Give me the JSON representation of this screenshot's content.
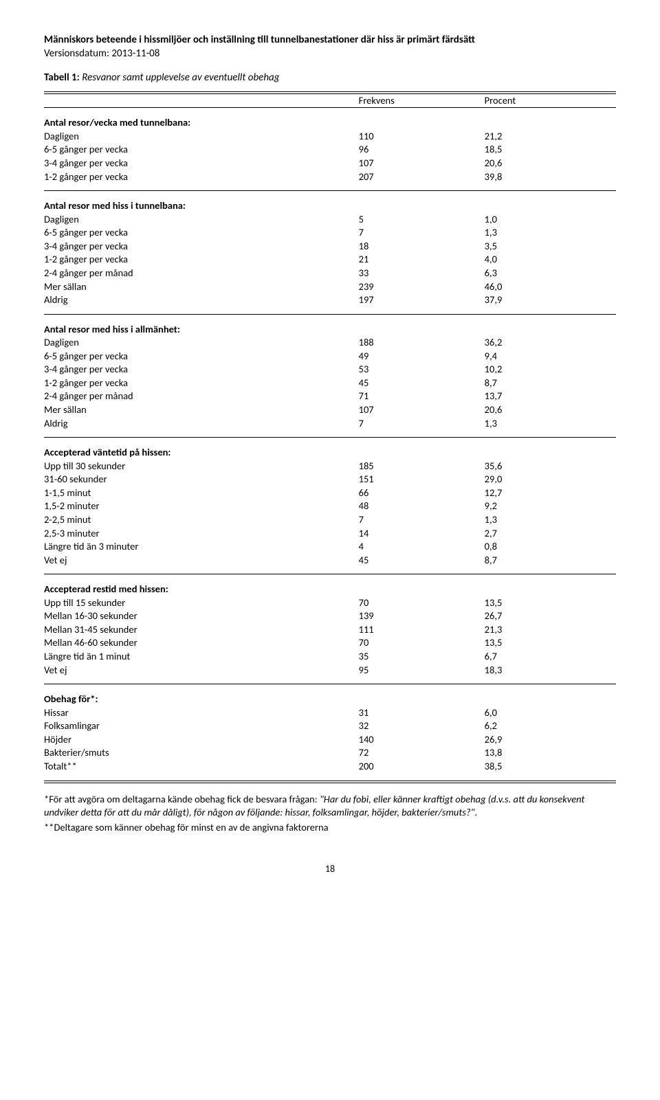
{
  "header": {
    "title": "Människors beteende i hissmiljöer och inställning till tunnelbanestationer där hiss är primärt färdsätt",
    "version": "Versionsdatum: 2013-11-08"
  },
  "tableCaption": {
    "label": "Tabell 1:",
    "text": " Resvanor samt upplevelse av eventuellt obehag"
  },
  "columns": {
    "freq": "Frekvens",
    "pct": "Procent"
  },
  "sections": [
    {
      "header": "Antal resor/vecka med tunnelbana:",
      "rows": [
        {
          "label": "Dagligen",
          "freq": "110",
          "pct": "21,2"
        },
        {
          "label": "6-5 gånger per vecka",
          "freq": "96",
          "pct": "18,5"
        },
        {
          "label": "3-4 gånger per vecka",
          "freq": "107",
          "pct": "20,6"
        },
        {
          "label": "1-2 gånger per vecka",
          "freq": "207",
          "pct": "39,8"
        }
      ]
    },
    {
      "header": "Antal resor med hiss i tunnelbana:",
      "rows": [
        {
          "label": "Dagligen",
          "freq": "5",
          "pct": "1,0"
        },
        {
          "label": "6-5 gånger per vecka",
          "freq": "7",
          "pct": "1,3"
        },
        {
          "label": "3-4 gånger per vecka",
          "freq": "18",
          "pct": "3,5"
        },
        {
          "label": "1-2 gånger per vecka",
          "freq": "21",
          "pct": "4,0"
        },
        {
          "label": "2-4 gånger per månad",
          "freq": "33",
          "pct": "6,3"
        },
        {
          "label": "Mer sällan",
          "freq": "239",
          "pct": "46,0"
        },
        {
          "label": "Aldrig",
          "freq": "197",
          "pct": "37,9"
        }
      ]
    },
    {
      "header": "Antal resor med hiss i allmänhet:",
      "rows": [
        {
          "label": "Dagligen",
          "freq": "188",
          "pct": "36,2"
        },
        {
          "label": "6-5 gånger per vecka",
          "freq": "49",
          "pct": "9,4"
        },
        {
          "label": "3-4 gånger per vecka",
          "freq": "53",
          "pct": "10,2"
        },
        {
          "label": "1-2 gånger per vecka",
          "freq": "45",
          "pct": "8,7"
        },
        {
          "label": "2-4 gånger per månad",
          "freq": "71",
          "pct": "13,7"
        },
        {
          "label": "Mer sällan",
          "freq": "107",
          "pct": "20,6"
        },
        {
          "label": "Aldrig",
          "freq": "7",
          "pct": "1,3"
        }
      ]
    },
    {
      "header": "Accepterad väntetid på hissen:",
      "rows": [
        {
          "label": "Upp till 30 sekunder",
          "freq": "185",
          "pct": "35,6"
        },
        {
          "label": "31-60 sekunder",
          "freq": "151",
          "pct": "29,0"
        },
        {
          "label": "1-1,5 minut",
          "freq": "66",
          "pct": "12,7"
        },
        {
          "label": "1,5-2 minuter",
          "freq": "48",
          "pct": "9,2"
        },
        {
          "label": "2-2,5 minut",
          "freq": "7",
          "pct": "1,3"
        },
        {
          "label": "2,5-3 minuter",
          "freq": "14",
          "pct": "2,7"
        },
        {
          "label": "Längre tid än 3 minuter",
          "freq": "4",
          "pct": "0,8"
        },
        {
          "label": "Vet ej",
          "freq": "45",
          "pct": "8,7"
        }
      ]
    },
    {
      "header": "Accepterad restid med hissen:",
      "rows": [
        {
          "label": "Upp till 15 sekunder",
          "freq": "70",
          "pct": "13,5"
        },
        {
          "label": "Mellan 16-30 sekunder",
          "freq": "139",
          "pct": "26,7"
        },
        {
          "label": "Mellan 31-45 sekunder",
          "freq": "111",
          "pct": "21,3"
        },
        {
          "label": "Mellan 46-60 sekunder",
          "freq": "70",
          "pct": "13,5"
        },
        {
          "label": "Längre tid än 1 minut",
          "freq": "35",
          "pct": "6,7"
        },
        {
          "label": "Vet ej",
          "freq": "95",
          "pct": "18,3"
        }
      ]
    },
    {
      "header": "Obehag för*:",
      "rows": [
        {
          "label": "Hissar",
          "freq": "31",
          "pct": "6,0"
        },
        {
          "label": "Folksamlingar",
          "freq": "32",
          "pct": "6,2"
        },
        {
          "label": "Höjder",
          "freq": "140",
          "pct": "26,9"
        },
        {
          "label": "Bakterier/smuts",
          "freq": "72",
          "pct": "13,8"
        },
        {
          "label": "Totalt**",
          "freq": "200",
          "pct": "38,5"
        }
      ]
    }
  ],
  "footnotes": {
    "line1_prefix": "*För att avgöra om deltagarna kände obehag fick de besvara frågan: ",
    "line1_ital": "\"Har du fobi, eller känner kraftigt obehag (d.v.s. att du konsekvent undviker detta för att du mår dåligt), för någon av följande: hissar, folksamlingar, höjder, bakterier/smuts?\"",
    "line1_suffix": ".",
    "line2": "**Deltagare som känner obehag för minst en av de angivna faktorerna"
  },
  "pageNumber": "18",
  "layout": {
    "colwidths": [
      "55%",
      "22%",
      "23%"
    ]
  }
}
